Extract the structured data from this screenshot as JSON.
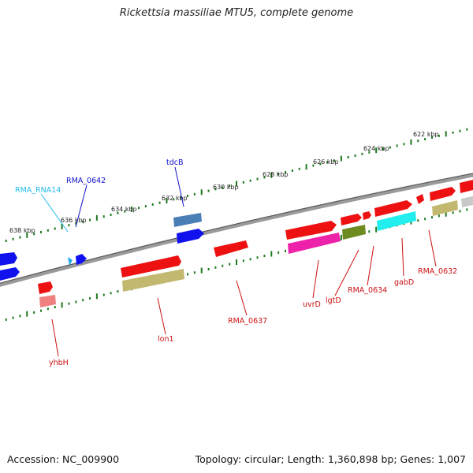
{
  "title": "Rickettsia massiliae MTU5, complete genome",
  "footer": {
    "accession": "Accession: NC_009900",
    "summary": "Topology: circular; Length: 1,360,898 bp; Genes: 1,007"
  },
  "colors": {
    "backbone": "#8a8a8a",
    "ticks": "#1f7a1f",
    "red": "#ee1111",
    "blue": "#1111ee",
    "steelblue": "#4a7fb5",
    "olive": "#c2b870",
    "olivegreen": "#6e8b22",
    "magenta": "#ee22aa",
    "cyan": "#22eeee",
    "salmon": "#f08080",
    "gray": "#c8c8c8",
    "lightblue": "#22aaee"
  },
  "kbp_labels": [
    {
      "pos": 622,
      "text": "622 kbp"
    },
    {
      "pos": 624,
      "text": "624 kbp"
    },
    {
      "pos": 626,
      "text": "626 kbp"
    },
    {
      "pos": 628,
      "text": "628 kbp"
    },
    {
      "pos": 630,
      "text": "630 kbp"
    },
    {
      "pos": 632,
      "text": "632 kbp"
    },
    {
      "pos": 634,
      "text": "634 kbp"
    },
    {
      "pos": 636,
      "text": "636 kbp"
    },
    {
      "pos": 638,
      "text": "638 kbp"
    }
  ],
  "gene_labels": [
    {
      "text": "RMA_RNA14",
      "color": "#22bbee"
    },
    {
      "text": "RMA_0642",
      "color": "#1111cc"
    },
    {
      "text": "tdcB",
      "color": "#1111cc"
    },
    {
      "text": "yhbH",
      "color": "#cc1111"
    },
    {
      "text": "lon1",
      "color": "#cc1111"
    },
    {
      "text": "RMA_0637",
      "color": "#cc1111"
    },
    {
      "text": "uvrD",
      "color": "#cc1111"
    },
    {
      "text": "lgtD",
      "color": "#cc1111"
    },
    {
      "text": "RMA_0634",
      "color": "#cc1111"
    },
    {
      "text": "gabD",
      "color": "#cc1111"
    },
    {
      "text": "RMA_0632",
      "color": "#cc1111"
    }
  ]
}
